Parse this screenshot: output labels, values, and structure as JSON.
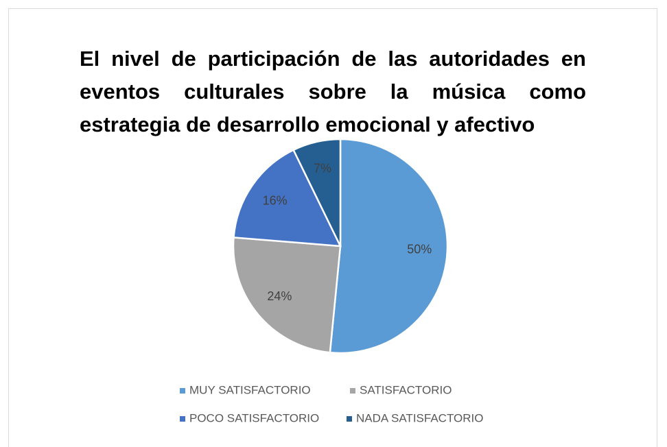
{
  "chart_data": {
    "type": "pie",
    "title": "El nivel de participación de las autoridades en eventos culturales sobre la música como estrategia de desarrollo emocional y afectivo",
    "categories": [
      "MUY SATISFACTORIO",
      "SATISFACTORIO",
      "POCO SATISFACTORIO",
      "NADA SATISFACTORIO"
    ],
    "values": [
      50,
      24,
      16,
      7
    ],
    "value_labels": [
      "50%",
      "24%",
      "16%",
      "7%"
    ],
    "colors": [
      "#5b9bd5",
      "#a5a5a5",
      "#4472c4",
      "#255e91"
    ],
    "legend": "bottom"
  }
}
